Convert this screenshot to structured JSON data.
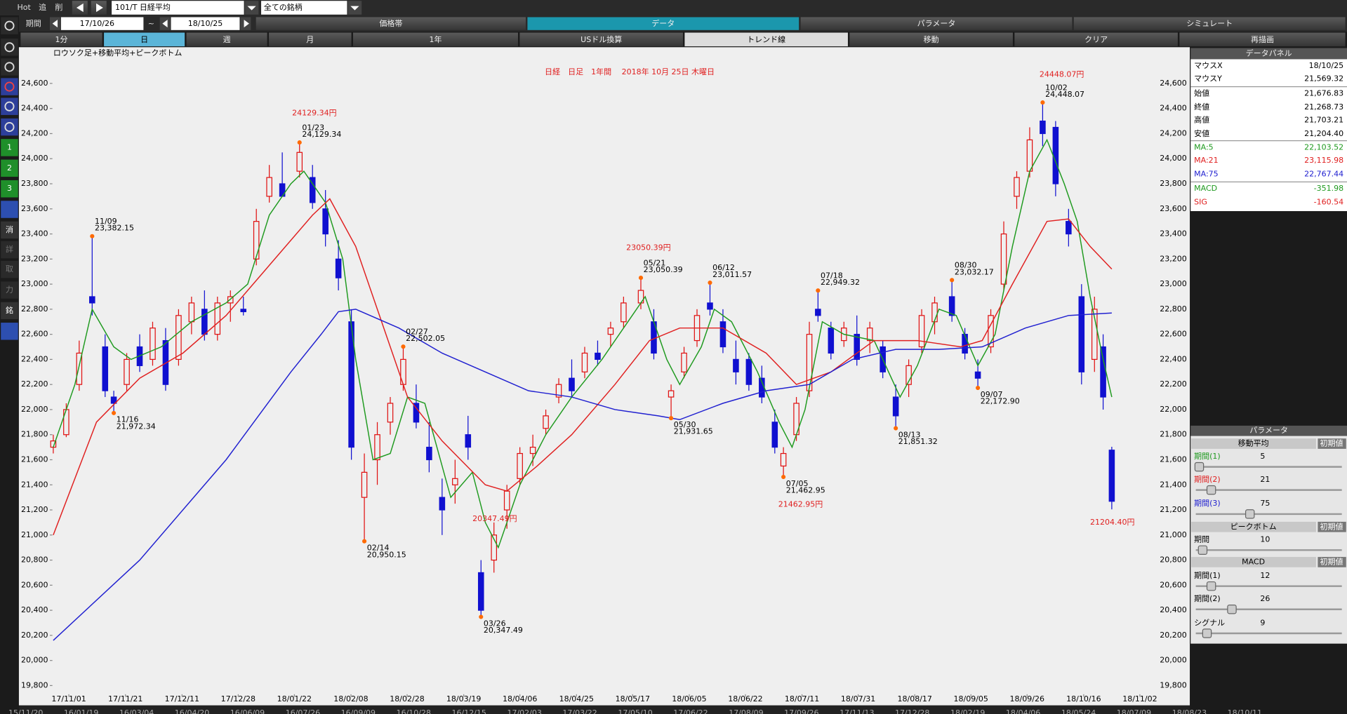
{
  "toolbar": {
    "hot": "Hot",
    "add": "追",
    "delete": "削",
    "symbol": "101/T 日経平均",
    "universe": "全ての銘柄",
    "period_label": "期間",
    "from": "17/10/26",
    "tilde": "~",
    "to": "18/10/25",
    "tabs": [
      "価格帯",
      "データ",
      "パラメータ",
      "シミュレート"
    ],
    "buttons": [
      "1分",
      "日",
      "週",
      "月",
      "1年",
      "USドル換算",
      "トレンド線",
      "移動",
      "クリア",
      "再描画"
    ]
  },
  "sidebar": [
    "1",
    "2",
    "3",
    "消",
    "詳",
    "取",
    "力",
    "銘"
  ],
  "chart_data": {
    "type": "candlestick",
    "subtitle": "ロウソク足+移動平均+ピークボトム",
    "title": "日経　日足　1年間　 2018年 10月 25日 木曜日",
    "x": [
      0,
      3,
      6,
      9,
      12,
      14,
      17,
      20,
      23,
      26,
      29,
      32,
      35,
      38,
      41,
      44,
      47,
      50,
      53,
      57,
      60,
      63,
      66,
      69,
      72,
      75,
      78,
      81,
      84,
      87,
      90,
      93,
      96,
      99,
      102,
      105,
      108,
      111,
      114,
      117,
      120,
      123,
      126,
      129,
      132,
      136,
      139,
      143,
      146,
      149,
      152,
      155,
      158,
      161,
      164,
      167,
      169,
      172,
      175,
      177,
      180,
      183,
      186,
      189,
      192,
      195,
      198,
      201,
      204,
      208,
      211,
      214,
      217,
      220,
      223,
      226,
      229,
      232,
      235,
      238,
      241,
      243,
      245
    ],
    "open": [
      21700,
      21800,
      22200,
      22900,
      22500,
      22100,
      22200,
      22500,
      22400,
      22550,
      22400,
      22700,
      22800,
      22600,
      22850,
      22800,
      23200,
      23700,
      23800,
      23900,
      23850,
      23600,
      23200,
      22700,
      21300,
      21600,
      21900,
      22200,
      22050,
      21700,
      21300,
      21400,
      21800,
      20700,
      20800,
      21200,
      21450,
      21650,
      21850,
      22100,
      22250,
      22300,
      22450,
      22600,
      22700,
      22850,
      22700,
      22100,
      22300,
      22550,
      22850,
      22700,
      22400,
      22400,
      22250,
      21900,
      21550,
      21800,
      22150,
      22800,
      22650,
      22550,
      22600,
      22550,
      22500,
      22100,
      22200,
      22500,
      22700,
      22900,
      22600,
      22300,
      22500,
      23000,
      23700,
      23900,
      24300,
      24250,
      23500,
      22900,
      22400,
      22500,
      21676.83
    ],
    "high": [
      21800,
      22050,
      22550,
      23382.15,
      22600,
      22150,
      22450,
      22600,
      22700,
      22650,
      22800,
      22900,
      22950,
      22900,
      22950,
      22900,
      23600,
      23950,
      24050,
      24129.34,
      23950,
      23750,
      23350,
      22800,
      21650,
      21900,
      22100,
      22502.05,
      22200,
      21900,
      21450,
      21600,
      21950,
      20800,
      21100,
      21400,
      21700,
      21800,
      22000,
      22250,
      22400,
      22500,
      22550,
      22700,
      22900,
      23050.39,
      22800,
      22200,
      22500,
      22800,
      23011.57,
      22800,
      22550,
      22450,
      22350,
      22000,
      21700,
      22100,
      22700,
      22949.32,
      22700,
      22700,
      22750,
      22700,
      22550,
      22200,
      22400,
      22800,
      22900,
      23032.17,
      22650,
      22400,
      22800,
      23500,
      23900,
      24250,
      24448.07,
      24300,
      23600,
      23000,
      22900,
      22600,
      21703.21
    ],
    "low": [
      21650,
      21780,
      22150,
      22750,
      22100,
      21972.34,
      22150,
      22300,
      22350,
      22150,
      22350,
      22600,
      22550,
      22550,
      22700,
      22750,
      23150,
      23650,
      23700,
      23850,
      23600,
      23300,
      22950,
      21600,
      20950.15,
      21400,
      21800,
      22150,
      21850,
      21500,
      21000,
      21250,
      21600,
      20347.49,
      20700,
      21050,
      21400,
      21550,
      21800,
      22050,
      22100,
      22250,
      22350,
      22500,
      22650,
      22800,
      22400,
      21931.65,
      22250,
      22500,
      22750,
      22450,
      22200,
      22150,
      22050,
      21650,
      21462.95,
      21750,
      22100,
      22700,
      22400,
      22500,
      22350,
      22450,
      22250,
      21851.32,
      22100,
      22450,
      22600,
      22700,
      22400,
      22172.9,
      22450,
      22950,
      23600,
      23850,
      24100,
      23700,
      23300,
      22200,
      22300,
      22000,
      21204.4
    ],
    "close": [
      21750,
      22000,
      22450,
      22850,
      22150,
      22050,
      22400,
      22350,
      22650,
      22200,
      22750,
      22850,
      22600,
      22850,
      22900,
      22780,
      23500,
      23850,
      23700,
      24050,
      23650,
      23400,
      23050,
      21700,
      21500,
      21800,
      22050,
      22400,
      21900,
      21600,
      21200,
      21450,
      21700,
      20400,
      21000,
      21350,
      21650,
      21700,
      21950,
      22200,
      22150,
      22450,
      22400,
      22650,
      22850,
      22950,
      22450,
      22150,
      22450,
      22750,
      22800,
      22500,
      22300,
      22200,
      22100,
      21700,
      21650,
      22050,
      22600,
      22750,
      22450,
      22650,
      22400,
      22650,
      22300,
      21950,
      22350,
      22750,
      22850,
      22750,
      22450,
      22250,
      22750,
      23400,
      23850,
      24150,
      24200,
      23800,
      23400,
      22300,
      22800,
      22100,
      21268.73
    ],
    "up_color": "#e01010",
    "down_color": "#1010d0",
    "series": [
      {
        "color": "#1f9a1f",
        "x": [
          0,
          5,
          9,
          14,
          18,
          25,
          32,
          40,
          45,
          50,
          55,
          58,
          63,
          67,
          70,
          74,
          78,
          82,
          86,
          92,
          97,
          100,
          103,
          108,
          114,
          120,
          127,
          134,
          137,
          142,
          145,
          150,
          153,
          157,
          163,
          168,
          171,
          174,
          178,
          183,
          190,
          196,
          200,
          205,
          209,
          214,
          218,
          222,
          226,
          230,
          234,
          237,
          240,
          243,
          245
        ],
        "values": [
          21700,
          22200,
          22800,
          22500,
          22400,
          22500,
          22700,
          22850,
          23000,
          23550,
          23800,
          23900,
          23650,
          23200,
          22400,
          21600,
          21650,
          22100,
          22050,
          21300,
          21500,
          21100,
          20900,
          21400,
          21800,
          22100,
          22400,
          22750,
          22900,
          22400,
          22200,
          22500,
          22800,
          22700,
          22300,
          21900,
          21700,
          22000,
          22700,
          22600,
          22550,
          22100,
          22350,
          22800,
          22750,
          22350,
          22600,
          23300,
          23900,
          24150,
          23800,
          23500,
          22900,
          22400,
          22100
        ]
      },
      {
        "color": "#e02020",
        "x": [
          0,
          10,
          20,
          30,
          40,
          50,
          60,
          64,
          70,
          75,
          82,
          90,
          100,
          105,
          112,
          120,
          130,
          138,
          145,
          155,
          165,
          172,
          180,
          190,
          200,
          210,
          215,
          222,
          230,
          235,
          240,
          245
        ],
        "values": [
          21000,
          21900,
          22250,
          22450,
          22750,
          23150,
          23550,
          23680,
          23300,
          22800,
          22100,
          21750,
          21400,
          21350,
          21550,
          21800,
          22200,
          22550,
          22650,
          22650,
          22450,
          22200,
          22300,
          22550,
          22550,
          22500,
          22550,
          23000,
          23500,
          23520,
          23300,
          23120
        ]
      },
      {
        "color": "#2020d0",
        "x": [
          0,
          20,
          40,
          55,
          62,
          66,
          70,
          80,
          90,
          100,
          110,
          120,
          130,
          140,
          145,
          155,
          165,
          175,
          185,
          195,
          205,
          215,
          225,
          235,
          245
        ],
        "values": [
          20160,
          20800,
          21600,
          22300,
          22600,
          22780,
          22800,
          22650,
          22450,
          22300,
          22150,
          22100,
          22000,
          21950,
          21920,
          22050,
          22150,
          22200,
          22400,
          22480,
          22480,
          22500,
          22650,
          22750,
          22770
        ]
      }
    ],
    "xlim": [
      -0.8,
      255.7
    ],
    "ylim": [
      19710,
      24875
    ],
    "yticks": [
      {
        "value": 19800,
        "label": "19,800"
      },
      {
        "value": 20000,
        "label": "20,000"
      },
      {
        "value": 20200,
        "label": "20,200"
      },
      {
        "value": 20400,
        "label": "20,400"
      },
      {
        "value": 20600,
        "label": "20,600"
      },
      {
        "value": 20800,
        "label": "20,800"
      },
      {
        "value": 21000,
        "label": "21,000"
      },
      {
        "value": 21200,
        "label": "21,200"
      },
      {
        "value": 21400,
        "label": "21,400"
      },
      {
        "value": 21600,
        "label": "21,600"
      },
      {
        "value": 21800,
        "label": "21,800"
      },
      {
        "value": 22000,
        "label": "22,000"
      },
      {
        "value": 22200,
        "label": "22,200"
      },
      {
        "value": 22400,
        "label": "22,400"
      },
      {
        "value": 22600,
        "label": "22,600"
      },
      {
        "value": 22800,
        "label": "22,800"
      },
      {
        "value": 23000,
        "label": "23,000"
      },
      {
        "value": 23200,
        "label": "23,200"
      },
      {
        "value": 23400,
        "label": "23,400"
      },
      {
        "value": 23600,
        "label": "23,600"
      },
      {
        "value": 23800,
        "label": "23,800"
      },
      {
        "value": 24000,
        "label": "24,000"
      },
      {
        "value": 24200,
        "label": "24,200"
      },
      {
        "value": 24400,
        "label": "24,400"
      },
      {
        "value": 24600,
        "label": "24,600"
      }
    ],
    "xticks": [
      {
        "value": 3.6,
        "label": "17/11/01"
      },
      {
        "value": 16.7,
        "label": "17/11/21"
      },
      {
        "value": 29.8,
        "label": "17/12/11"
      },
      {
        "value": 42.8,
        "label": "17/12/28"
      },
      {
        "value": 55.8,
        "label": "18/01/22"
      },
      {
        "value": 68.9,
        "label": "18/02/08"
      },
      {
        "value": 81.9,
        "label": "18/02/28"
      },
      {
        "value": 95,
        "label": "18/03/19"
      },
      {
        "value": 108,
        "label": "18/04/06"
      },
      {
        "value": 121.1,
        "label": "18/04/25"
      },
      {
        "value": 134.1,
        "label": "18/05/17"
      },
      {
        "value": 147.2,
        "label": "18/06/05"
      },
      {
        "value": 160.2,
        "label": "18/06/22"
      },
      {
        "value": 173.3,
        "label": "18/07/11"
      },
      {
        "value": 186.3,
        "label": "18/07/31"
      },
      {
        "value": 199.4,
        "label": "18/08/17"
      },
      {
        "value": 212.4,
        "label": "18/09/05"
      },
      {
        "value": 225.4,
        "label": "18/09/26"
      },
      {
        "value": 238.5,
        "label": "18/10/16"
      },
      {
        "value": 251.5,
        "label": "18/11/02"
      }
    ],
    "peaks": [
      {
        "x": 9,
        "date": "11/09",
        "value": 23382.15,
        "value_label": "23,382.15"
      },
      {
        "x": 14,
        "date": "11/16",
        "value": 21972.34,
        "value_label": "21,972.34"
      },
      {
        "x": 57,
        "date": "01/23",
        "value": 24129.34,
        "value_label": "24,129.34"
      },
      {
        "x": 72,
        "date": "02/14",
        "value": 20950.15,
        "value_label": "20,950.15"
      },
      {
        "x": 81,
        "date": "02/27",
        "value": 22502.05,
        "value_label": "22,502.05"
      },
      {
        "x": 99,
        "date": "03/26",
        "value": 20347.49,
        "value_label": "20,347.49"
      },
      {
        "x": 136,
        "date": "05/21",
        "value": 23050.39,
        "value_label": "23,050.39"
      },
      {
        "x": 143,
        "date": "05/30",
        "value": 21931.65,
        "value_label": "21,931.65"
      },
      {
        "x": 152,
        "date": "06/12",
        "value": 23011.57,
        "value_label": "23,011.57"
      },
      {
        "x": 169,
        "date": "07/05",
        "value": 21462.95,
        "value_label": "21,462.95"
      },
      {
        "x": 177,
        "date": "07/18",
        "value": 22949.32,
        "value_label": "22,949.32"
      },
      {
        "x": 195,
        "date": "08/13",
        "value": 21851.32,
        "value_label": "21,851.32"
      },
      {
        "x": 208,
        "date": "08/30",
        "value": 23032.17,
        "value_label": "23,032.17"
      },
      {
        "x": 214,
        "date": "09/07",
        "value": 22172.9,
        "value_label": "22,172.90"
      },
      {
        "x": 229,
        "date": "10/02",
        "value": 24448.07,
        "value_label": "24,448.07"
      }
    ],
    "annotations": [
      "24129.34円",
      "23050.39円",
      "20347.49円",
      "21462.95円",
      "24448.07円",
      "21204.40円"
    ],
    "lower_dates": [
      "15/11/20",
      "16/01/19",
      "16/03/04",
      "16/04/20",
      "16/06/09",
      "16/07/26",
      "16/09/09",
      "16/10/28",
      "16/12/15",
      "17/02/03",
      "17/03/22",
      "17/05/10",
      "17/06/22",
      "17/08/09",
      "17/09/26",
      "17/11/13",
      "17/12/28",
      "18/02/19",
      "18/04/06",
      "18/05/24",
      "18/07/09",
      "18/08/23",
      "18/10/11"
    ]
  },
  "data_panel": {
    "title": "データパネル",
    "rows": [
      {
        "label": "マウスX",
        "value": "18/10/25"
      },
      {
        "label": "マウスY",
        "value": "21,569.32"
      },
      {
        "label": "始値",
        "value": "21,676.83"
      },
      {
        "label": "終値",
        "value": "21,268.73"
      },
      {
        "label": "高値",
        "value": "21,703.21"
      },
      {
        "label": "安値",
        "value": "21,204.40"
      },
      {
        "label": "MA:5",
        "value": "22,103.52",
        "color": "#1f9a1f"
      },
      {
        "label": "MA:21",
        "value": "23,115.98",
        "color": "#e02020"
      },
      {
        "label": "MA:75",
        "value": "22,767.44",
        "color": "#2020d0"
      },
      {
        "label": "MACD",
        "value": "-351.98",
        "color": "#1f9a1f"
      },
      {
        "label": "SIG",
        "value": "-160.54",
        "color": "#e02020"
      }
    ]
  },
  "parameters": {
    "title": "パラメータ",
    "groups": [
      {
        "name": "移動平均",
        "reset": "初期値",
        "items": [
          {
            "label": "期間(1)",
            "value": 5,
            "color": "#1f9a1f"
          },
          {
            "label": "期間(2)",
            "value": 21,
            "color": "#e02020"
          },
          {
            "label": "期間(3)",
            "value": 75,
            "color": "#2020d0"
          }
        ]
      },
      {
        "name": "ピークボトム",
        "reset": "初期値",
        "items": [
          {
            "label": "期間",
            "value": 10
          }
        ]
      },
      {
        "name": "MACD",
        "reset": "初期値",
        "items": [
          {
            "label": "期間(1)",
            "value": 12
          },
          {
            "label": "期間(2)",
            "value": 26
          },
          {
            "label": "シグナル",
            "value": 9
          }
        ]
      }
    ]
  }
}
